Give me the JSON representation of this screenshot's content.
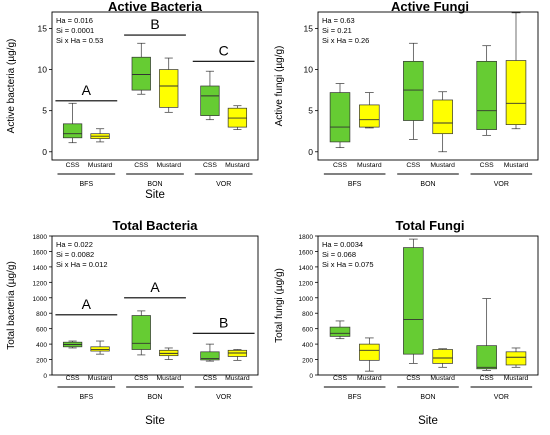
{
  "colors": {
    "CSS": "#66cc33",
    "Mustard": "#ffff00",
    "outline": "#333333"
  },
  "chart_data": [
    {
      "type": "box",
      "title": "Active Bacteria",
      "ylabel": "Active bacteria (µg/g)",
      "xlabel": "Site",
      "ylim": [
        -1,
        17
      ],
      "yticks": [
        "0",
        "5",
        "10",
        "15"
      ],
      "stats": [
        "Ha = 0.016",
        "Si = 0.0001",
        "Si x Ha = 0.53"
      ],
      "sites": [
        "BFS",
        "BON",
        "VOR"
      ],
      "treatments": [
        "CSS",
        "Mustard"
      ],
      "boxes": [
        {
          "site": "BFS",
          "treatment": "CSS",
          "min": 1.1,
          "q1": 1.7,
          "median": 2.2,
          "q3": 3.4,
          "max": 5.9
        },
        {
          "site": "BFS",
          "treatment": "Mustard",
          "min": 1.2,
          "q1": 1.6,
          "median": 1.9,
          "q3": 2.2,
          "max": 2.8
        },
        {
          "site": "BON",
          "treatment": "CSS",
          "min": 7.0,
          "q1": 7.5,
          "median": 9.4,
          "q3": 11.5,
          "max": 13.2
        },
        {
          "site": "BON",
          "treatment": "Mustard",
          "min": 4.8,
          "q1": 5.4,
          "median": 8.0,
          "q3": 10.0,
          "max": 11.4
        },
        {
          "site": "VOR",
          "treatment": "CSS",
          "min": 3.9,
          "q1": 4.4,
          "median": 6.8,
          "q3": 8.0,
          "max": 9.8
        },
        {
          "site": "VOR",
          "treatment": "Mustard",
          "min": 2.7,
          "q1": 3.0,
          "median": 4.1,
          "q3": 5.3,
          "max": 5.6
        }
      ],
      "letters": [
        {
          "text": "A",
          "site": "BFS",
          "value": 6.2
        },
        {
          "text": "B",
          "site": "BON",
          "value": 14.2
        },
        {
          "text": "C",
          "site": "VOR",
          "value": 11.0
        }
      ]
    },
    {
      "type": "box",
      "title": "Active Fungi",
      "ylabel": "Active fungi (µg/g)",
      "xlabel": "",
      "ylim": [
        -1,
        17
      ],
      "yticks": [
        "0",
        "5",
        "10",
        "15"
      ],
      "stats": [
        "Ha = 0.63",
        "Si = 0.21",
        "Si x Ha = 0.26"
      ],
      "sites": [
        "BFS",
        "BON",
        "VOR"
      ],
      "treatments": [
        "CSS",
        "Mustard"
      ],
      "boxes": [
        {
          "site": "BFS",
          "treatment": "CSS",
          "min": 0.5,
          "q1": 1.2,
          "median": 3.0,
          "q3": 7.2,
          "max": 8.3
        },
        {
          "site": "BFS",
          "treatment": "Mustard",
          "min": 2.9,
          "q1": 3.0,
          "median": 3.9,
          "q3": 5.7,
          "max": 7.2
        },
        {
          "site": "BON",
          "treatment": "CSS",
          "min": 1.5,
          "q1": 3.8,
          "median": 7.5,
          "q3": 11.0,
          "max": 13.2
        },
        {
          "site": "BON",
          "treatment": "Mustard",
          "min": 0.0,
          "q1": 2.2,
          "median": 3.5,
          "q3": 6.3,
          "max": 7.3
        },
        {
          "site": "VOR",
          "treatment": "CSS",
          "min": 2.0,
          "q1": 2.7,
          "median": 5.0,
          "q3": 11.0,
          "max": 12.9
        },
        {
          "site": "VOR",
          "treatment": "Mustard",
          "min": 2.8,
          "q1": 3.3,
          "median": 5.9,
          "q3": 11.1,
          "max": 16.9
        }
      ],
      "letters": []
    },
    {
      "type": "box",
      "title": "Total Bacteria",
      "ylabel": "Total bacteria (µg/g)",
      "xlabel": "Site",
      "ylim": [
        0,
        1800
      ],
      "yticks": [
        "0",
        "200",
        "400",
        "600",
        "800",
        "1000",
        "1200",
        "1400",
        "1600",
        "1800"
      ],
      "stats": [
        "Ha = 0.022",
        "Si = 0.0082",
        "Si x Ha = 0.012"
      ],
      "sites": [
        "BFS",
        "BON",
        "VOR"
      ],
      "treatments": [
        "CSS",
        "Mustard"
      ],
      "boxes": [
        {
          "site": "BFS",
          "treatment": "CSS",
          "min": 350,
          "q1": 365,
          "median": 395,
          "q3": 425,
          "max": 440
        },
        {
          "site": "BFS",
          "treatment": "Mustard",
          "min": 270,
          "q1": 310,
          "median": 330,
          "q3": 365,
          "max": 440
        },
        {
          "site": "BON",
          "treatment": "CSS",
          "min": 260,
          "q1": 330,
          "median": 410,
          "q3": 770,
          "max": 830
        },
        {
          "site": "BON",
          "treatment": "Mustard",
          "min": 200,
          "q1": 250,
          "median": 280,
          "q3": 320,
          "max": 350
        },
        {
          "site": "VOR",
          "treatment": "CSS",
          "min": 180,
          "q1": 195,
          "median": 215,
          "q3": 300,
          "max": 400
        },
        {
          "site": "VOR",
          "treatment": "Mustard",
          "min": 190,
          "q1": 240,
          "median": 285,
          "q3": 320,
          "max": 330
        }
      ],
      "letters": [
        {
          "text": "A",
          "site": "BFS",
          "value": 780
        },
        {
          "text": "A",
          "site": "BON",
          "value": 1000
        },
        {
          "text": "B",
          "site": "VOR",
          "value": 540
        }
      ]
    },
    {
      "type": "box",
      "title": "Total Fungi",
      "ylabel": "Total fungi (µg/g)",
      "xlabel": "Site",
      "ylim": [
        0,
        1800
      ],
      "yticks": [
        "0",
        "200",
        "400",
        "600",
        "800",
        "1000",
        "1200",
        "1400",
        "1600",
        "1800"
      ],
      "stats": [
        "Ha = 0.0034",
        "Si = 0.068",
        "Si x Ha = 0.075"
      ],
      "sites": [
        "BFS",
        "BON",
        "VOR"
      ],
      "treatments": [
        "CSS",
        "Mustard"
      ],
      "boxes": [
        {
          "site": "BFS",
          "treatment": "CSS",
          "min": 470,
          "q1": 500,
          "median": 540,
          "q3": 620,
          "max": 700
        },
        {
          "site": "BFS",
          "treatment": "Mustard",
          "min": 50,
          "q1": 190,
          "median": 320,
          "q3": 400,
          "max": 480
        },
        {
          "site": "BON",
          "treatment": "CSS",
          "min": 150,
          "q1": 270,
          "median": 720,
          "q3": 1650,
          "max": 1760
        },
        {
          "site": "BON",
          "treatment": "Mustard",
          "min": 100,
          "q1": 150,
          "median": 220,
          "q3": 330,
          "max": 340
        },
        {
          "site": "VOR",
          "treatment": "CSS",
          "min": 60,
          "q1": 80,
          "median": 100,
          "q3": 380,
          "max": 990
        },
        {
          "site": "VOR",
          "treatment": "Mustard",
          "min": 100,
          "q1": 130,
          "median": 230,
          "q3": 300,
          "max": 350
        }
      ],
      "letters": []
    }
  ]
}
